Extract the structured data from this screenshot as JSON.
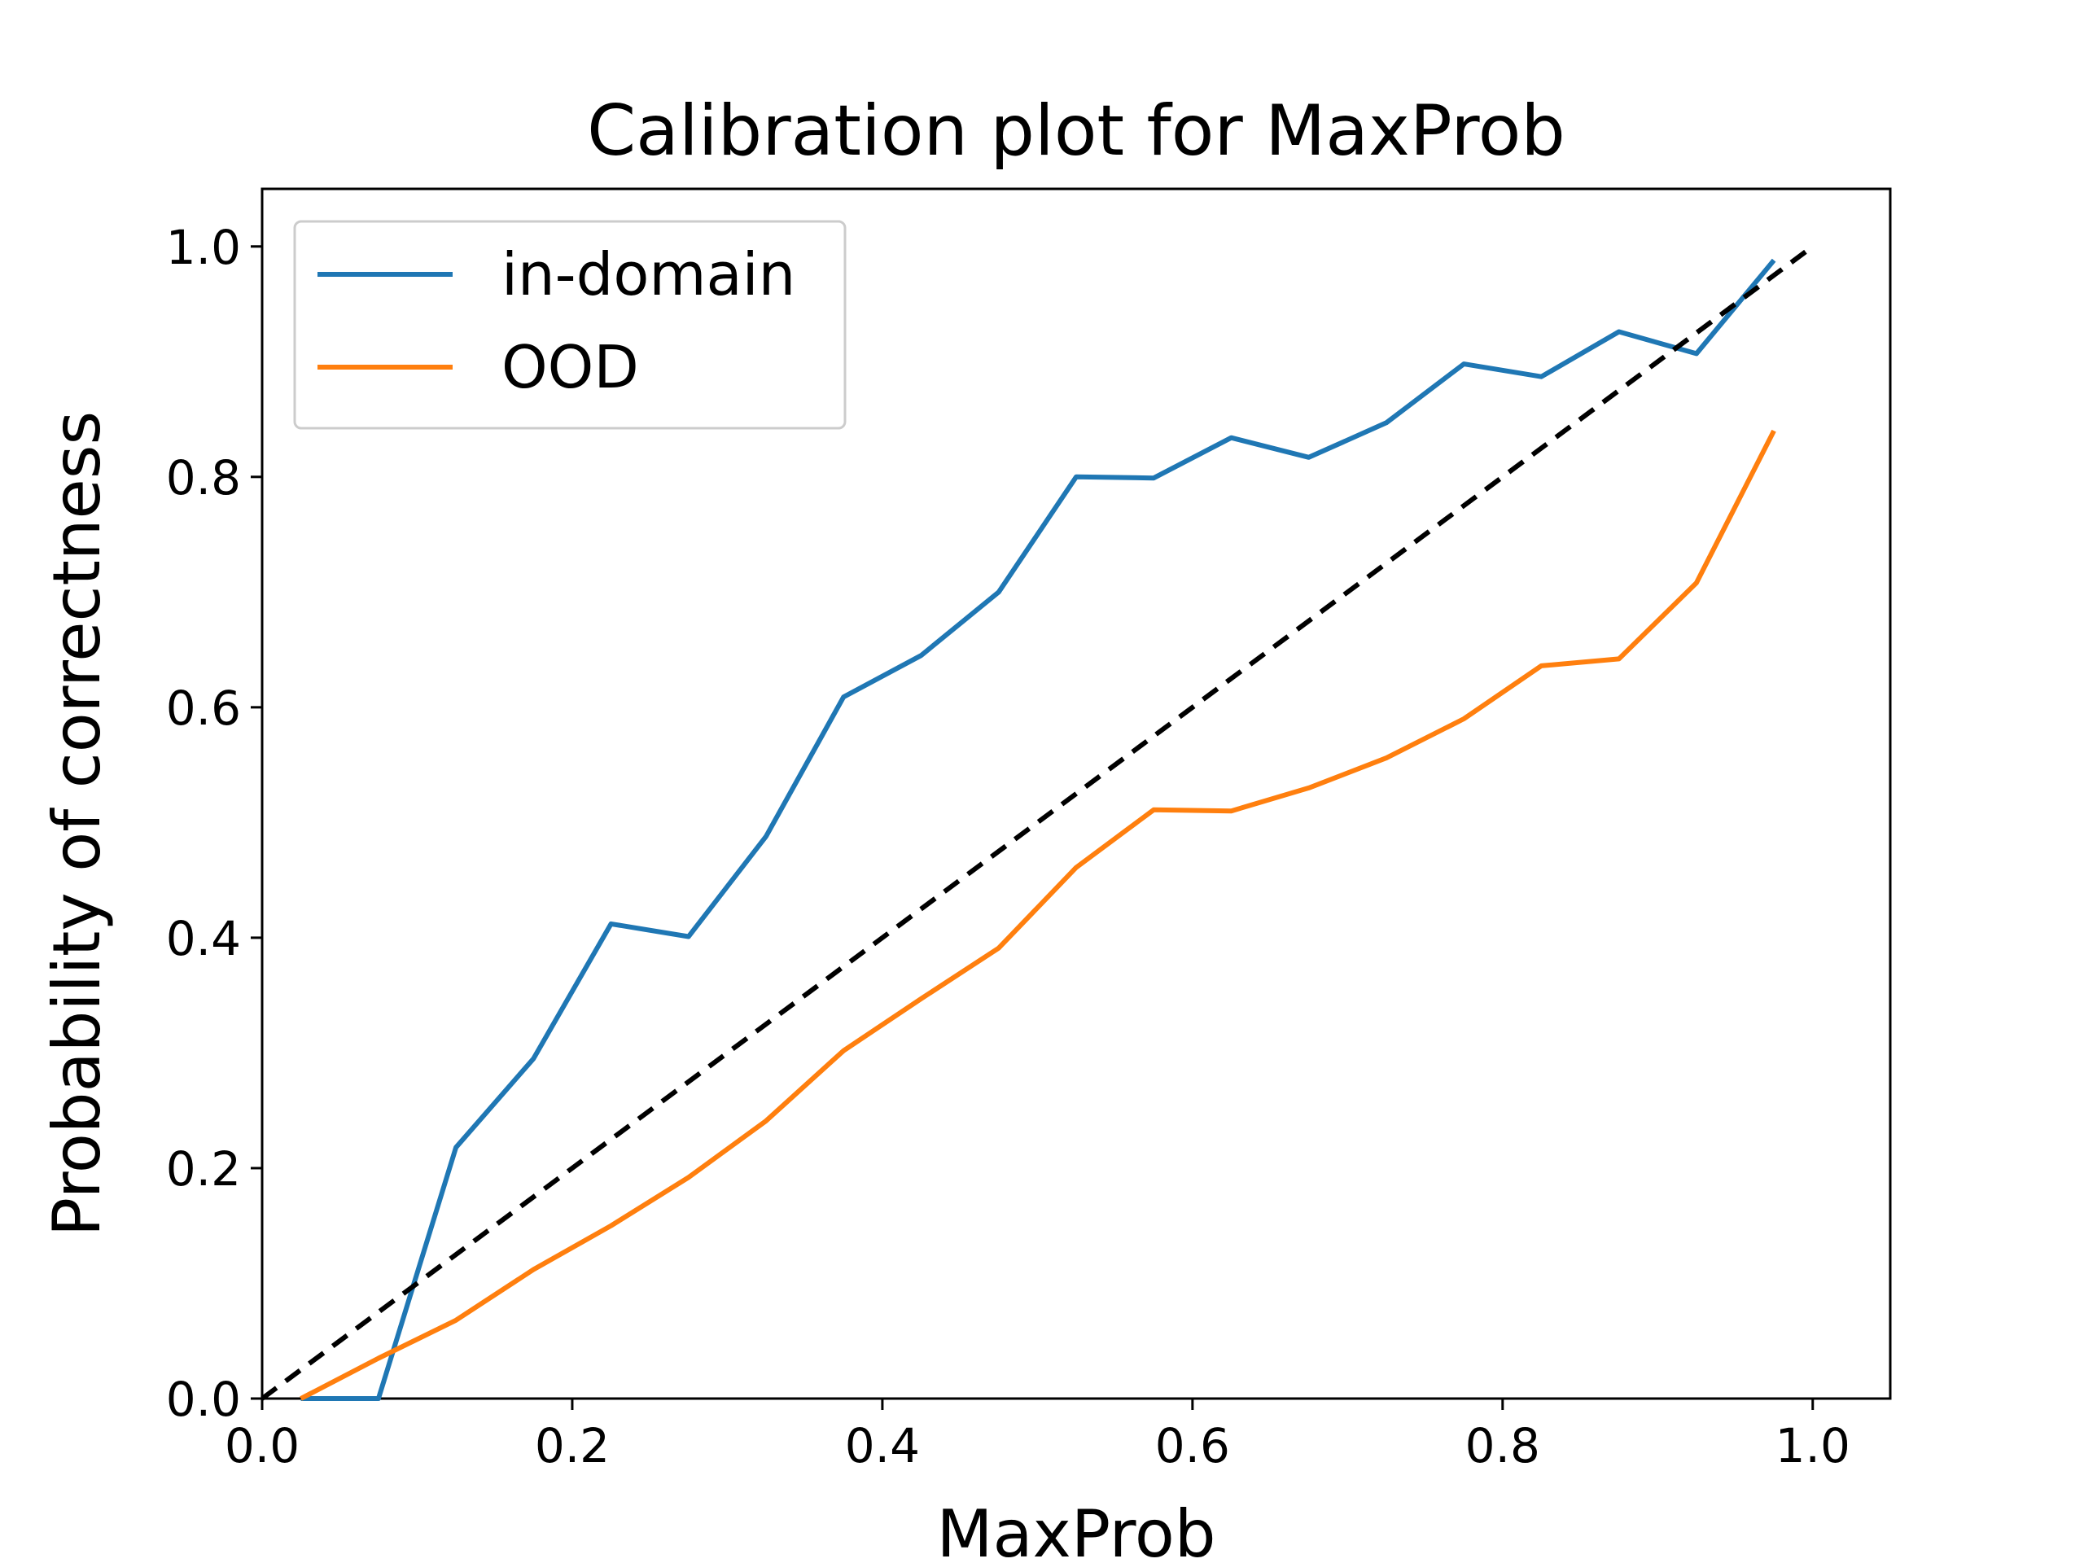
{
  "chart_data": {
    "type": "line",
    "title": "Calibration plot for MaxProb",
    "xlabel": "MaxProb",
    "ylabel": "Probability of correctness",
    "xlim": [
      0.0,
      1.05
    ],
    "ylim": [
      0.0,
      1.05
    ],
    "xticks": [
      "0.0",
      "0.2",
      "0.4",
      "0.6",
      "0.8",
      "1.0"
    ],
    "yticks": [
      "0.0",
      "0.2",
      "0.4",
      "0.6",
      "0.8",
      "1.0"
    ],
    "grid": false,
    "legend_position": "upper-left",
    "series": [
      {
        "name": "in-domain",
        "color": "#1f77b4",
        "x": [
          0.025,
          0.075,
          0.125,
          0.175,
          0.225,
          0.275,
          0.325,
          0.375,
          0.425,
          0.475,
          0.525,
          0.575,
          0.625,
          0.675,
          0.725,
          0.775,
          0.825,
          0.875,
          0.925,
          0.975
        ],
        "y": [
          0.0,
          0.0,
          0.218,
          0.295,
          0.412,
          0.401,
          0.488,
          0.609,
          0.645,
          0.7,
          0.8,
          0.799,
          0.834,
          0.817,
          0.847,
          0.898,
          0.887,
          0.926,
          0.907,
          0.988
        ]
      },
      {
        "name": "OOD",
        "color": "#ff7f0e",
        "x": [
          0.025,
          0.075,
          0.125,
          0.175,
          0.225,
          0.275,
          0.325,
          0.375,
          0.425,
          0.475,
          0.525,
          0.575,
          0.625,
          0.675,
          0.725,
          0.775,
          0.825,
          0.875,
          0.925,
          0.975
        ],
        "y": [
          0.0,
          0.035,
          0.068,
          0.112,
          0.15,
          0.192,
          0.241,
          0.302,
          0.347,
          0.391,
          0.461,
          0.511,
          0.51,
          0.53,
          0.556,
          0.59,
          0.636,
          0.642,
          0.708,
          0.84
        ]
      }
    ],
    "reference_line": {
      "style": "dashed",
      "color": "#000000",
      "x": [
        0.0,
        1.0
      ],
      "y": [
        0.0,
        1.0
      ]
    }
  }
}
